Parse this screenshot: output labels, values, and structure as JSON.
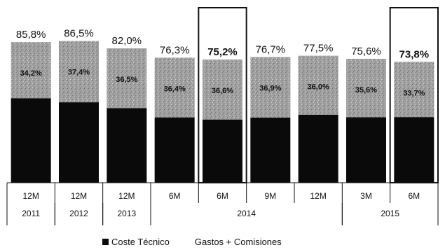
{
  "chart_data": {
    "type": "bar",
    "stacked": true,
    "categories": [
      "12M 2011",
      "12M 2012",
      "12M 2013",
      "6M 2014",
      "6M 2014",
      "9M 2014",
      "12M 2014",
      "3M 2015",
      "6M 2015"
    ],
    "x_labels_top": [
      "12M",
      "12M",
      "12M",
      "6M",
      "6M",
      "9M",
      "12M",
      "3M",
      "6M"
    ],
    "x_labels_bottom": [
      {
        "label": "2011",
        "span": [
          0,
          0
        ]
      },
      {
        "label": "2012",
        "span": [
          1,
          1
        ]
      },
      {
        "label": "2013",
        "span": [
          2,
          2
        ]
      },
      {
        "label": "2014",
        "span": [
          3,
          6
        ]
      },
      {
        "label": "2015",
        "span": [
          7,
          8
        ]
      }
    ],
    "series": [
      {
        "name": "Coste Técnico",
        "values": [
          51.6,
          49.1,
          45.5,
          39.9,
          38.6,
          39.8,
          41.5,
          40.0,
          40.1
        ],
        "color": "#0a0a0a"
      },
      {
        "name": "Gastos + Comisiones",
        "values": [
          34.2,
          37.4,
          36.5,
          36.4,
          36.6,
          36.9,
          36.0,
          35.6,
          33.7
        ],
        "color": "#a0a0a0"
      }
    ],
    "totals": [
      85.8,
      86.5,
      82.0,
      76.3,
      75.2,
      76.7,
      77.5,
      75.6,
      73.8
    ],
    "total_labels": [
      "85,8%",
      "86,5%",
      "82,0%",
      "76,3%",
      "75,2%",
      "76,7%",
      "77,5%",
      "75,6%",
      "73,8%"
    ],
    "segment_labels": [
      "34,2%",
      "37,4%",
      "36,5%",
      "36,4%",
      "36,6%",
      "36,9%",
      "36,0%",
      "35,6%",
      "33,7%"
    ],
    "highlighted": [
      4,
      8
    ],
    "bold_totals": [
      4,
      8
    ],
    "ylim": [
      0,
      100
    ],
    "grid": false,
    "legend_position": "bottom",
    "title": "",
    "xlabel": "",
    "ylabel": ""
  }
}
